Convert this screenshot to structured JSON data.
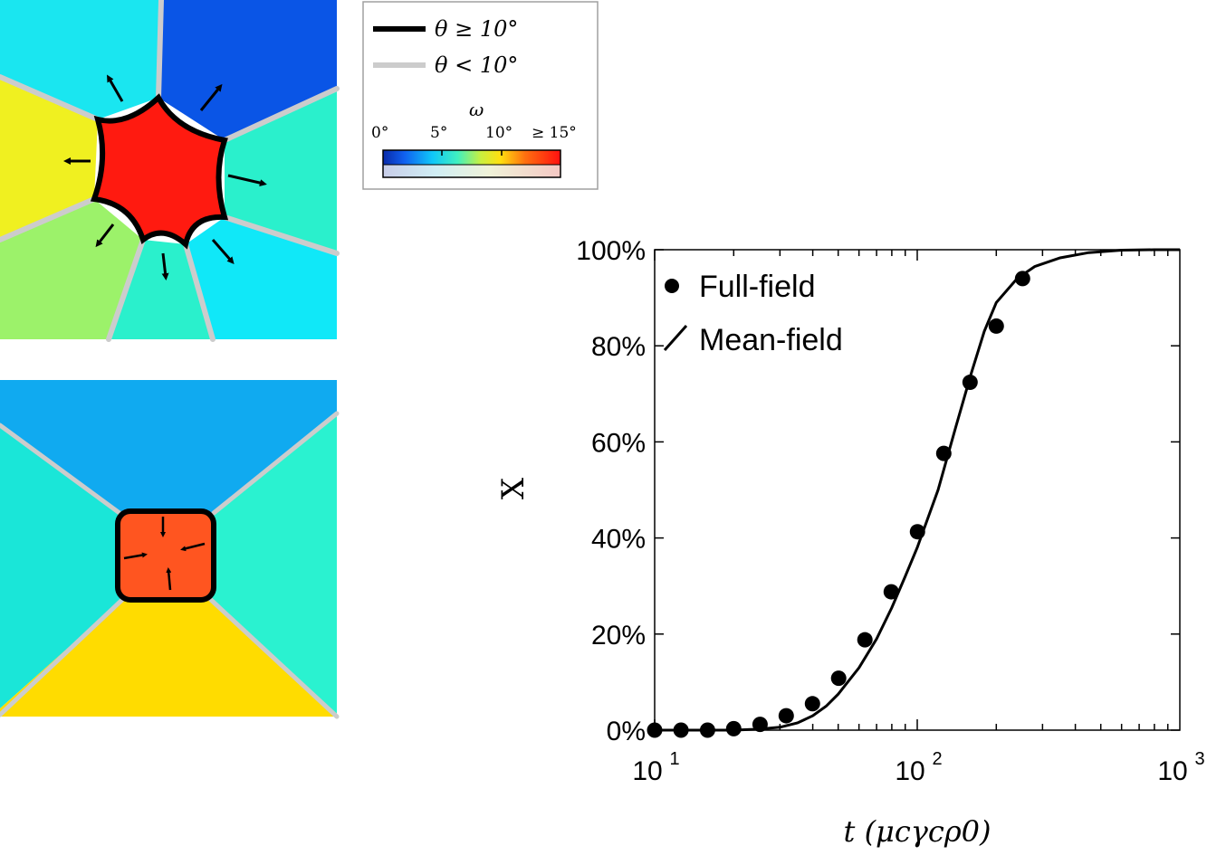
{
  "legend_box": {
    "high_angle_label": "θ ≥ 10°",
    "low_angle_label": "θ < 10°",
    "colorbar_title": "ω",
    "colorbar_ticks": [
      "0°",
      "5°",
      "10°",
      "≥ 15°"
    ],
    "colors": {
      "high_angle_line": "#000000",
      "low_angle_line": "#cccccc"
    }
  },
  "panel_top": {
    "colors": {
      "grain_center": "#ff1a10",
      "grain_top_left": "#1ae6f0",
      "grain_top_right": "#0a55e6",
      "grain_left": "#f0f020",
      "grain_right": "#2af0cc",
      "grain_bottom_left": "#9cf26a",
      "grain_bottom_center": "#2af0cc",
      "grain_bottom_right": "#10e8f8"
    }
  },
  "panel_bottom": {
    "colors": {
      "grain_center": "#ff5520",
      "grain_top": "#10aaf0",
      "grain_left": "#1ae6d8",
      "grain_right": "#2af2d0",
      "grain_bottom": "#ffdc00"
    }
  },
  "chart_data": {
    "type": "scatter",
    "title": "",
    "xlabel": "t (μcγcρ0)",
    "ylabel": "X",
    "xscale": "log",
    "xlim": [
      10,
      1000
    ],
    "ylim": [
      0,
      100
    ],
    "x_ticks": [
      {
        "value": 10,
        "base": "10",
        "exp": "1"
      },
      {
        "value": 100,
        "base": "10",
        "exp": "2"
      },
      {
        "value": 1000,
        "base": "10",
        "exp": "3"
      }
    ],
    "y_ticks": [
      {
        "value": 0,
        "label": "0%"
      },
      {
        "value": 20,
        "label": "20%"
      },
      {
        "value": 40,
        "label": "40%"
      },
      {
        "value": 60,
        "label": "60%"
      },
      {
        "value": 80,
        "label": "80%"
      },
      {
        "value": 100,
        "label": "100%"
      }
    ],
    "legend_position": "top-left",
    "series": [
      {
        "name": "Full-field",
        "kind": "scatter",
        "x": [
          10,
          12.6,
          15.9,
          20,
          25.2,
          31.7,
          39.9,
          50.2,
          63.2,
          79.6,
          100.2,
          126.2,
          158.9,
          200,
          251.8
        ],
        "y": [
          0,
          0,
          0,
          0.3,
          1.2,
          3,
          5.5,
          10.8,
          18.8,
          28.8,
          41.3,
          57.6,
          72.4,
          84.1,
          94
        ]
      },
      {
        "name": "Mean-field",
        "kind": "line",
        "x": [
          10,
          15,
          20,
          25,
          30,
          35,
          40,
          45,
          50,
          60,
          70,
          80,
          90,
          100,
          120,
          140,
          160,
          180,
          200,
          240,
          280,
          350,
          450,
          600,
          800,
          1000
        ],
        "y": [
          0,
          0,
          0,
          0.2,
          0.6,
          1.5,
          3,
          5,
          7.5,
          13,
          19,
          25.5,
          32,
          38,
          50,
          63,
          74,
          83,
          89,
          94,
          96.5,
          98.3,
          99.4,
          99.9,
          100,
          100
        ]
      }
    ]
  }
}
